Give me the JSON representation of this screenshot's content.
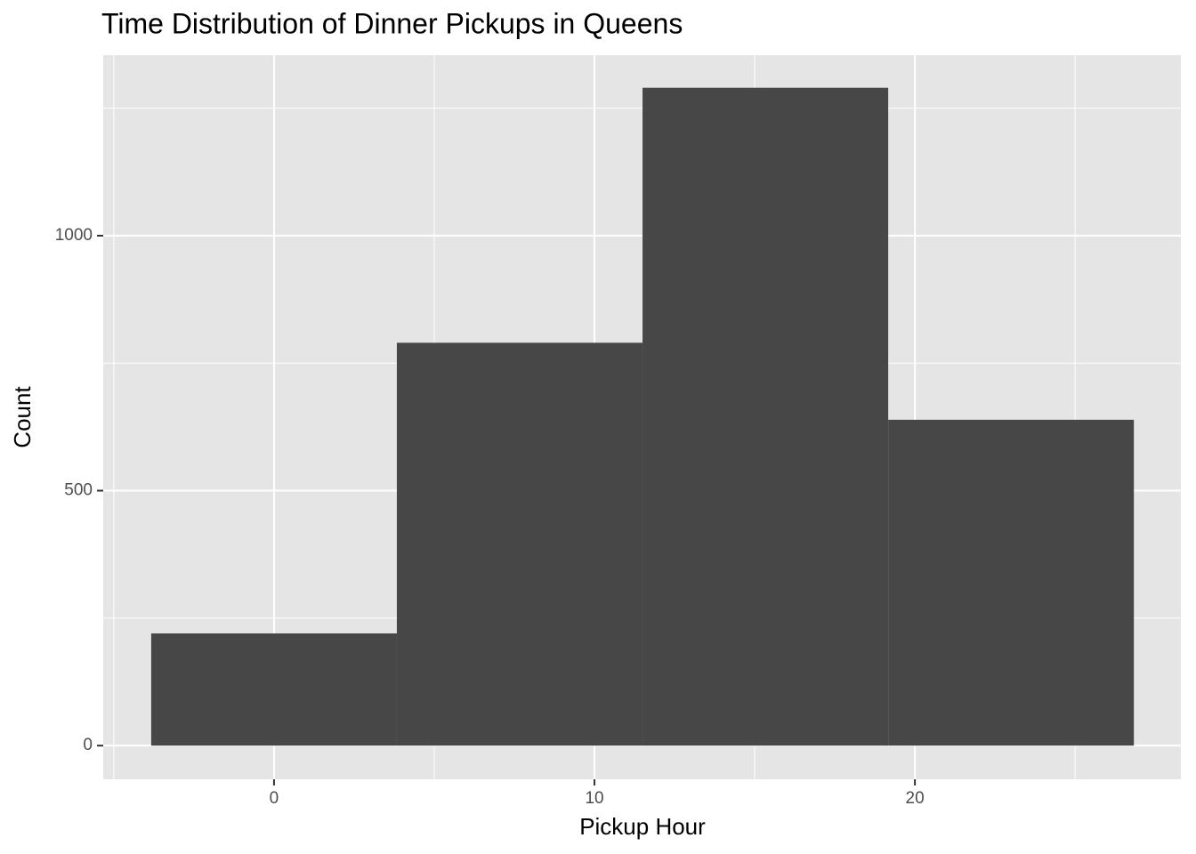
{
  "chart_data": {
    "type": "histogram",
    "title": "Time Distribution of Dinner Pickups in Queens",
    "x_label": "Pickup Hour",
    "y_label": "Count",
    "bins": [
      -3.833,
      3.833,
      11.5,
      19.167,
      26.833
    ],
    "values": [
      220,
      790,
      1290,
      639
    ],
    "color": "#474747",
    "xlim": [
      -5.33,
      28.3
    ],
    "xticks": [
      0,
      10,
      20
    ],
    "xminorticks": [
      -5,
      5,
      15,
      25
    ],
    "ylim": [
      -66,
      1354
    ],
    "yticks": [
      0,
      500,
      1000
    ],
    "yminorticks": [
      250,
      750,
      1250
    ],
    "grid": true
  }
}
